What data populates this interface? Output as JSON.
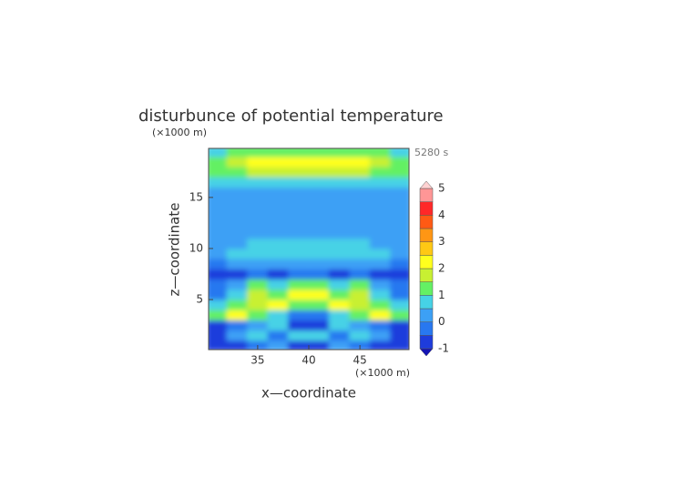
{
  "chart_data": {
    "type": "contour",
    "title": "disturbunce of potential temperature",
    "time_label": "5280 s",
    "x_label": "x—coordinate",
    "y_label": "z—coordinate",
    "x_unit": "(×1000 m)",
    "y_unit": "(×1000 m)",
    "xlim": [
      30.2,
      49.8
    ],
    "ylim": [
      0.1,
      19.8
    ],
    "xticks": [
      35,
      40,
      45
    ],
    "yticks": [
      5,
      10,
      15
    ],
    "x": [
      31,
      33,
      35,
      37,
      39,
      41,
      43,
      45,
      47,
      49
    ],
    "y": [
      0.5,
      1.5,
      2.5,
      3.5,
      4.5,
      5.5,
      6.5,
      7.5,
      8.5,
      9.5,
      10.5,
      11.5,
      12.5,
      13.5,
      14.5,
      15.5,
      16.5,
      17.5,
      18.5,
      19.5
    ],
    "z": [
      [
        -0.7,
        -0.7,
        -0.3,
        0.3,
        -0.7,
        -0.7,
        0.3,
        -0.3,
        -0.7,
        -0.7
      ],
      [
        -0.7,
        0.3,
        0.7,
        -0.3,
        0.7,
        0.7,
        -0.3,
        0.7,
        0.3,
        -0.7
      ],
      [
        -0.7,
        -0.3,
        0.3,
        0.7,
        -0.7,
        -0.7,
        0.7,
        0.3,
        -0.3,
        -0.7
      ],
      [
        1.2,
        2.2,
        1.2,
        0.7,
        -0.3,
        -0.3,
        0.7,
        1.2,
        2.2,
        1.2
      ],
      [
        0.7,
        1.2,
        1.7,
        2.2,
        1.2,
        1.2,
        2.2,
        1.7,
        1.2,
        0.7
      ],
      [
        -0.3,
        0.7,
        1.7,
        1.2,
        2.2,
        2.2,
        1.2,
        1.7,
        0.7,
        -0.3
      ],
      [
        -0.3,
        0.3,
        1.2,
        0.7,
        1.2,
        1.2,
        0.7,
        1.2,
        0.3,
        -0.3
      ],
      [
        -0.7,
        -0.7,
        -0.3,
        -0.7,
        -0.3,
        -0.3,
        -0.7,
        -0.3,
        -0.7,
        -0.7
      ],
      [
        -0.3,
        0.3,
        0.3,
        0.3,
        0.3,
        0.3,
        0.3,
        0.3,
        0.3,
        -0.3
      ],
      [
        0.3,
        0.7,
        0.7,
        0.7,
        0.7,
        0.7,
        0.7,
        0.7,
        0.7,
        0.3
      ],
      [
        0.3,
        0.3,
        0.7,
        0.7,
        0.7,
        0.7,
        0.7,
        0.7,
        0.3,
        0.3
      ],
      [
        0.3,
        0.3,
        0.3,
        0.3,
        0.3,
        0.3,
        0.3,
        0.3,
        0.3,
        0.3
      ],
      [
        0.3,
        0.3,
        0.3,
        0.3,
        0.3,
        0.3,
        0.3,
        0.3,
        0.3,
        0.3
      ],
      [
        0.3,
        0.3,
        0.3,
        0.3,
        0.3,
        0.3,
        0.3,
        0.3,
        0.3,
        0.3
      ],
      [
        0.3,
        0.3,
        0.3,
        0.3,
        0.3,
        0.3,
        0.3,
        0.3,
        0.3,
        0.3
      ],
      [
        0.3,
        0.3,
        0.3,
        0.3,
        0.3,
        0.3,
        0.3,
        0.3,
        0.3,
        0.3
      ],
      [
        0.7,
        0.7,
        0.7,
        0.7,
        0.7,
        0.7,
        0.7,
        0.7,
        0.7,
        0.7
      ],
      [
        1.2,
        1.2,
        1.7,
        1.7,
        1.7,
        1.7,
        1.7,
        1.7,
        1.2,
        1.2
      ],
      [
        1.2,
        1.7,
        2.2,
        2.2,
        2.2,
        2.2,
        2.2,
        2.2,
        1.7,
        1.2
      ],
      [
        0.7,
        1.2,
        1.2,
        1.2,
        1.2,
        1.2,
        1.2,
        1.2,
        1.2,
        0.7
      ]
    ],
    "levels": [
      -1,
      -0.5,
      0,
      0.5,
      1,
      1.5,
      2,
      2.5,
      3,
      3.5,
      4,
      4.5,
      5
    ],
    "level_colors": [
      "#1414b4",
      "#1e3cdc",
      "#2878f0",
      "#3ca0f5",
      "#46d2e6",
      "#64f064",
      "#c8f032",
      "#ffff1e",
      "#ffc814",
      "#ff9614",
      "#ff5a14",
      "#ff2828",
      "#ff9696",
      "#ffd2d2"
    ],
    "colorbar_ticks": [
      -1,
      0,
      1,
      2,
      3,
      4,
      5
    ]
  }
}
